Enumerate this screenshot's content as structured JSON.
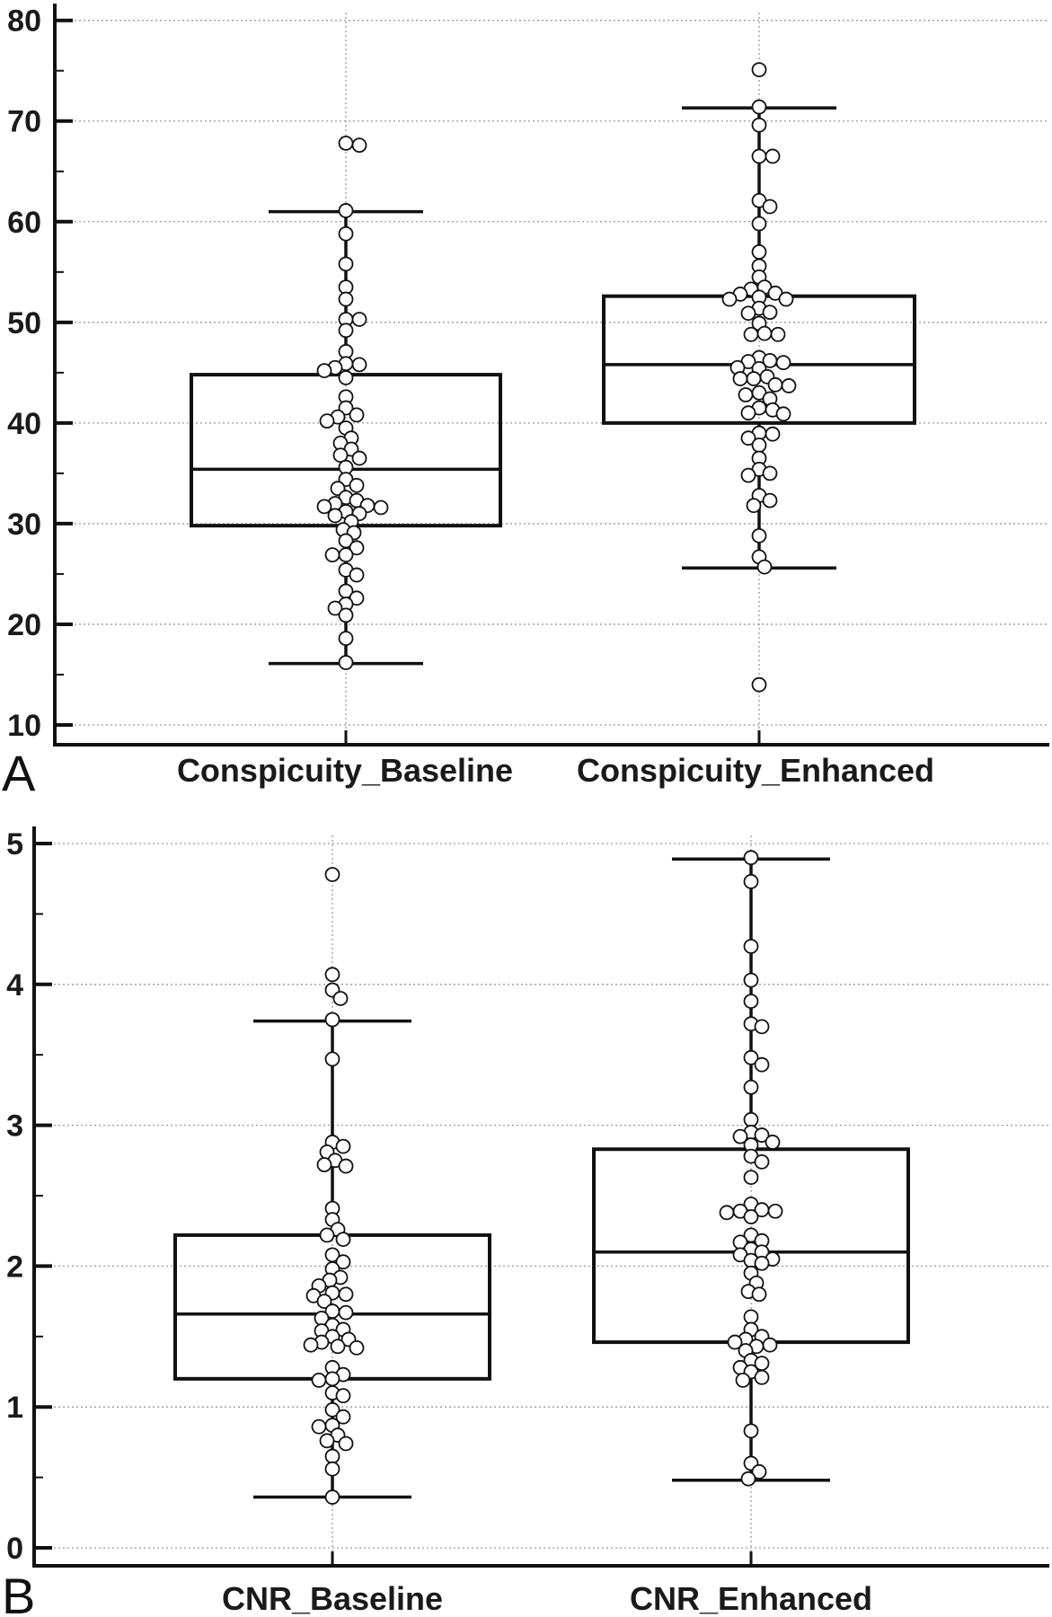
{
  "chart_data": [
    {
      "type": "box",
      "panel_label": "A",
      "title": "",
      "xlabel": "",
      "ylabel": "",
      "ylim": [
        10,
        80
      ],
      "yticks": [
        "10",
        "20",
        "30",
        "40",
        "50",
        "60",
        "70",
        "80"
      ],
      "ytick_values": [
        10,
        20,
        30,
        40,
        50,
        60,
        70,
        80
      ],
      "minor_step": 5,
      "grid": true,
      "categories": [
        "Conspicuity_Baseline",
        "Conspicuity_Enhanced"
      ],
      "series": [
        {
          "name": "Conspicuity_Baseline",
          "q1": 29.8,
          "median": 35.4,
          "q3": 44.8,
          "whisker_low": 16.1,
          "whisker_high": 61.0,
          "points": [
            67.6,
            67.8,
            61.1,
            58.8,
            55.8,
            53.5,
            52.3,
            50.3,
            50.3,
            49.2,
            47.1,
            45.9,
            45.5,
            45.2,
            45.8,
            44.5,
            42.6,
            41.5,
            40.8,
            40.6,
            40.2,
            39.5,
            38.5,
            38.0,
            37.4,
            36.8,
            36.5,
            35.6,
            34.4,
            33.8,
            33.5,
            32.6,
            32.3,
            32.0,
            31.8,
            31.7,
            31.6,
            31.2,
            31.0,
            30.8,
            30.2,
            29.4,
            29.1,
            28.3,
            27.6,
            26.9,
            26.9,
            25.4,
            24.9,
            23.3,
            22.6,
            22.0,
            21.6,
            20.9,
            18.6,
            16.2
          ]
        },
        {
          "name": "Conspicuity_Enhanced",
          "q1": 40.0,
          "median": 45.8,
          "q3": 52.6,
          "whisker_low": 25.6,
          "whisker_high": 71.3,
          "points": [
            75.1,
            71.4,
            69.6,
            66.5,
            66.5,
            62.1,
            61.5,
            59.8,
            57.0,
            55.6,
            54.5,
            53.5,
            53.3,
            52.9,
            52.8,
            52.5,
            52.3,
            52.3,
            51.4,
            51.0,
            50.9,
            49.9,
            48.9,
            48.8,
            48.8,
            46.5,
            46.1,
            46.2,
            46.0,
            45.5,
            45.4,
            44.6,
            44.4,
            44.4,
            43.8,
            43.7,
            43.0,
            42.8,
            42.4,
            41.5,
            41.3,
            41.0,
            40.9,
            39.0,
            38.9,
            38.5,
            37.8,
            36.5,
            35.4,
            35.0,
            34.8,
            32.8,
            32.3,
            31.8,
            28.8,
            26.7,
            25.7,
            14.0
          ]
        }
      ]
    },
    {
      "type": "box",
      "panel_label": "B",
      "title": "",
      "xlabel": "",
      "ylabel": "",
      "ylim": [
        0,
        5
      ],
      "yticks": [
        "0",
        "1",
        "2",
        "3",
        "4",
        "5"
      ],
      "ytick_values": [
        0,
        1,
        2,
        3,
        4,
        5
      ],
      "minor_step": 0.5,
      "grid": true,
      "categories": [
        "CNR_Baseline",
        "CNR_Enhanced"
      ],
      "series": [
        {
          "name": "CNR_Baseline",
          "q1": 1.2,
          "median": 1.66,
          "q3": 2.22,
          "whisker_low": 0.36,
          "whisker_high": 3.74,
          "points": [
            4.78,
            4.07,
            3.96,
            3.9,
            3.75,
            3.47,
            2.88,
            2.85,
            2.81,
            2.75,
            2.72,
            2.71,
            2.41,
            2.33,
            2.26,
            2.22,
            2.19,
            2.08,
            2.03,
            1.98,
            1.92,
            1.9,
            1.86,
            1.81,
            1.8,
            1.79,
            1.75,
            1.68,
            1.67,
            1.63,
            1.58,
            1.55,
            1.54,
            1.5,
            1.48,
            1.46,
            1.44,
            1.43,
            1.42,
            1.28,
            1.23,
            1.2,
            1.19,
            1.1,
            1.08,
            0.98,
            0.93,
            0.87,
            0.86,
            0.8,
            0.76,
            0.74,
            0.65,
            0.56,
            0.36
          ]
        },
        {
          "name": "CNR_Enhanced",
          "q1": 1.46,
          "median": 2.1,
          "q3": 2.83,
          "whisker_low": 0.48,
          "whisker_high": 4.89,
          "points": [
            4.9,
            4.73,
            4.27,
            4.03,
            3.88,
            3.72,
            3.7,
            3.48,
            3.43,
            3.27,
            3.04,
            2.95,
            2.93,
            2.92,
            2.88,
            2.86,
            2.78,
            2.74,
            2.63,
            2.44,
            2.4,
            2.39,
            2.39,
            2.38,
            2.35,
            2.22,
            2.18,
            2.17,
            2.12,
            2.1,
            2.08,
            2.05,
            2.04,
            2.02,
            1.95,
            1.88,
            1.82,
            1.8,
            1.64,
            1.55,
            1.5,
            1.48,
            1.46,
            1.44,
            1.43,
            1.4,
            1.33,
            1.31,
            1.28,
            1.25,
            1.21,
            1.19,
            0.83,
            0.6,
            0.54,
            0.49
          ]
        }
      ]
    }
  ]
}
